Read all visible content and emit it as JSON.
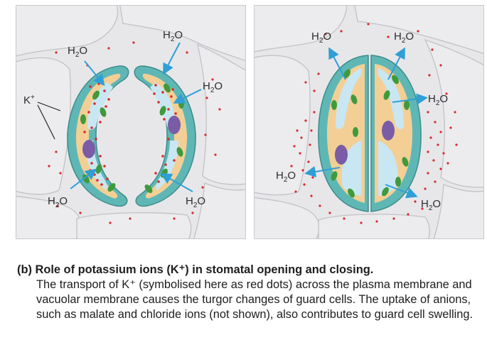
{
  "labels": {
    "h2o_main": "H",
    "h2o_sub": "2",
    "h2o_tail": "O",
    "k_main": "K",
    "k_sup": "+"
  },
  "caption": {
    "title": "(b) Role of potassium ions (K⁺) in stomatal opening and closing.",
    "body": "The transport of K⁺ (symbolised here as red dots) across the plasma membrane and vacuolar membrane causes the turgor changes of guard cells. The uptake of anions, such as malate and chloride ions (not shown), also contributes to guard cell swelling."
  },
  "colors": {
    "background_cells": "#e7e7ea",
    "cell_outline": "#c2c2c6",
    "guard_wall": "#5fb7b5",
    "cytoplasm": "#f3cf95",
    "vacuole": "#c9e6f3",
    "chloroplast": "#3f9a3c",
    "nucleus": "#7a5ca6",
    "k_ion": "#d82a2a",
    "arrow": "#2f9fd6"
  }
}
